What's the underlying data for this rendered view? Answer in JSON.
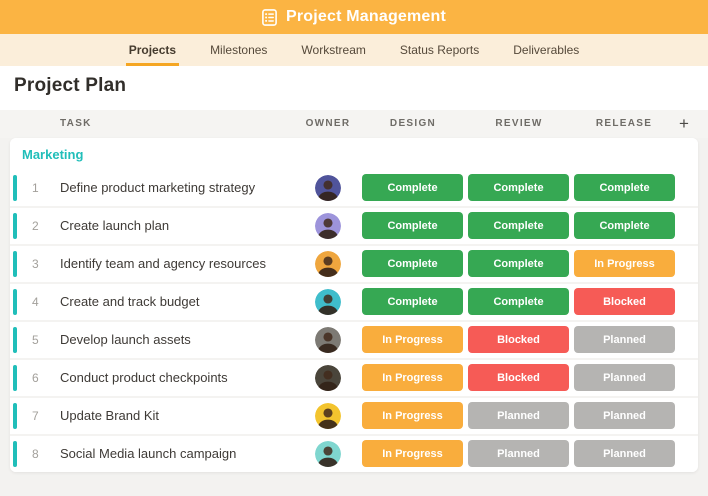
{
  "topbar": {
    "title": "Project Management",
    "icon": "clipboard-list-icon"
  },
  "tabs": {
    "items": [
      {
        "label": "Projects",
        "active": true
      },
      {
        "label": "Milestones",
        "active": false
      },
      {
        "label": "Workstream",
        "active": false
      },
      {
        "label": "Status Reports",
        "active": false
      },
      {
        "label": "Deliverables",
        "active": false
      }
    ]
  },
  "page": {
    "title": "Project Plan"
  },
  "table": {
    "columns": [
      "TASK",
      "OWNER",
      "DESIGN",
      "REVIEW",
      "RELEASE"
    ],
    "add_column_label": "+",
    "section": "Marketing",
    "rows": [
      {
        "num": "1",
        "task": "Define product marketing strategy",
        "avatar_bg": "#50549B",
        "statuses": [
          "Complete",
          "Complete",
          "Complete"
        ]
      },
      {
        "num": "2",
        "task": "Create launch plan",
        "avatar_bg": "#9D94DB",
        "statuses": [
          "Complete",
          "Complete",
          "Complete"
        ]
      },
      {
        "num": "3",
        "task": "Identify team and agency resources",
        "avatar_bg": "#EFA63E",
        "statuses": [
          "Complete",
          "Complete",
          "In Progress"
        ]
      },
      {
        "num": "4",
        "task": "Create and track budget",
        "avatar_bg": "#3FBDCB",
        "statuses": [
          "Complete",
          "Complete",
          "Blocked"
        ]
      },
      {
        "num": "5",
        "task": "Develop launch assets",
        "avatar_bg": "#7D7A74",
        "statuses": [
          "In Progress",
          "Blocked",
          "Planned"
        ]
      },
      {
        "num": "6",
        "task": "Conduct product checkpoints",
        "avatar_bg": "#4A453B",
        "statuses": [
          "In Progress",
          "Blocked",
          "Planned"
        ]
      },
      {
        "num": "7",
        "task": "Update Brand Kit",
        "avatar_bg": "#F3C42E",
        "statuses": [
          "In Progress",
          "Planned",
          "Planned"
        ]
      },
      {
        "num": "8",
        "task": "Social Media launch campaign",
        "avatar_bg": "#7FD6CF",
        "statuses": [
          "In Progress",
          "Planned",
          "Planned"
        ]
      }
    ]
  },
  "status_colors": {
    "Complete": "#36A853",
    "In Progress": "#F9AD3D",
    "Blocked": "#F65B56",
    "Planned": "#B5B4B2"
  },
  "colors": {
    "topbar_bg": "#FBB443",
    "tab_bar_bg": "#FBEEDA",
    "active_tab_underline": "#F5A623",
    "section_accent": "#20BEB9",
    "page_bg": "#F3F2F0"
  }
}
